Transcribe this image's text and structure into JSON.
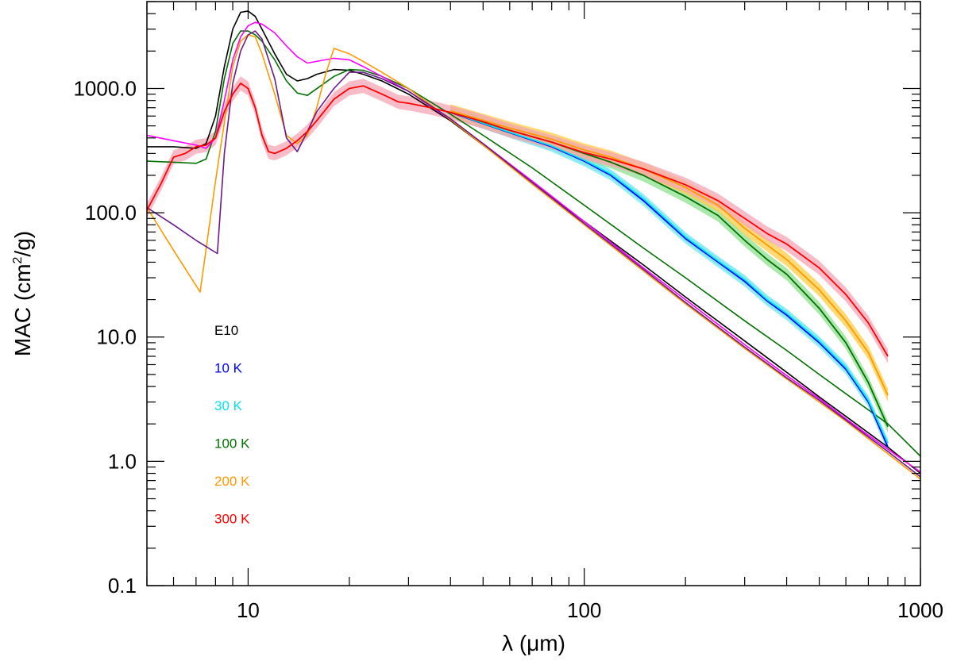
{
  "chart_data": {
    "type": "line",
    "title": "",
    "xlabel": "λ (μm)",
    "ylabel": {
      "pre": "MAC (cm",
      "sup": "2",
      "post": "/g)"
    },
    "xscale": "log",
    "yscale": "log",
    "xlim": [
      5,
      1000
    ],
    "ylim": [
      0.1,
      5000
    ],
    "xtick_values": [
      10,
      100,
      1000
    ],
    "xtick_labels": [
      "10",
      "100",
      "1000"
    ],
    "ytick_values": [
      0.1,
      1,
      10,
      100,
      1000
    ],
    "ytick_labels": [
      "0.1",
      "1.0",
      "10.0",
      "100.0",
      "1000.0"
    ],
    "legend_position": "middle-left",
    "legend": [
      {
        "label": "E10",
        "color": "#000000"
      },
      {
        "label": "10 K",
        "color": "#0000ff"
      },
      {
        "label": "30 K",
        "color": "#00e5ee"
      },
      {
        "label": "100 K",
        "color": "#007000"
      },
      {
        "label": "200 K",
        "color": "#ff9900"
      },
      {
        "label": "300 K",
        "color": "#ff0000"
      }
    ],
    "measured_series": [
      {
        "name": "10 K",
        "color": "#0000ff",
        "band_color": "#7ae8ef",
        "band_factor": 1.1,
        "x": [
          40,
          60,
          80,
          100,
          120,
          150,
          200,
          250,
          300,
          350,
          400,
          500,
          600,
          700,
          800
        ],
        "y": [
          640,
          440,
          340,
          260,
          200,
          125,
          62,
          40,
          28,
          19.5,
          15,
          9,
          5.5,
          3,
          1.3
        ]
      },
      {
        "name": "30 K",
        "color": "#00e5ee",
        "band_color": "#7ae8ef",
        "band_factor": 1.09,
        "x": [
          40,
          60,
          80,
          100,
          120,
          150,
          200,
          250,
          300,
          350,
          400,
          500,
          600,
          700,
          800
        ],
        "y": [
          645,
          445,
          345,
          265,
          205,
          130,
          64,
          41,
          29,
          20,
          15.5,
          9.3,
          5.7,
          3.1,
          1.4
        ]
      },
      {
        "name": "100 K",
        "color": "#007000",
        "band_color": "#8fe08f",
        "band_factor": 1.12,
        "x": [
          40,
          60,
          80,
          100,
          120,
          150,
          200,
          250,
          300,
          350,
          400,
          500,
          600,
          700,
          800
        ],
        "y": [
          650,
          460,
          370,
          300,
          255,
          200,
          135,
          95,
          60,
          42,
          32,
          17,
          9,
          4.3,
          1.9
        ]
      },
      {
        "name": "200 K",
        "color": "#ff9900",
        "band_color": "#ffcc44",
        "band_factor": 1.13,
        "x": [
          40,
          60,
          80,
          100,
          120,
          150,
          200,
          250,
          300,
          350,
          400,
          500,
          600,
          700,
          800
        ],
        "y": [
          660,
          480,
          390,
          320,
          280,
          225,
          160,
          115,
          75,
          55,
          42,
          24,
          13.5,
          7.5,
          3.4
        ]
      },
      {
        "name": "300 K",
        "color": "#ff0000",
        "band_color": "#f5a5b5",
        "band_factor": 1.14,
        "x": [
          5,
          5.5,
          6,
          6.5,
          7,
          7.5,
          8,
          8.5,
          9,
          9.5,
          10,
          10.5,
          11,
          11.5,
          12,
          13,
          14,
          15,
          16,
          18,
          20,
          22,
          25,
          28,
          30,
          35,
          40,
          50,
          60,
          80,
          100,
          120,
          150,
          200,
          250,
          300,
          350,
          400,
          500,
          600,
          700,
          800
        ],
        "y": [
          105,
          170,
          280,
          300,
          340,
          350,
          400,
          650,
          900,
          1100,
          1000,
          700,
          420,
          310,
          300,
          330,
          380,
          450,
          550,
          820,
          1000,
          1050,
          900,
          780,
          760,
          700,
          640,
          540,
          460,
          370,
          305,
          270,
          225,
          168,
          125,
          90,
          68,
          56,
          36,
          22,
          13,
          7
        ]
      }
    ],
    "model_series": [
      {
        "name": "E10 black",
        "color": "#000000",
        "x": [
          5,
          6,
          7,
          7.5,
          8,
          8.5,
          9,
          9.5,
          10,
          10.5,
          11,
          12,
          13,
          14,
          15,
          16,
          18,
          20,
          22,
          25,
          30,
          40,
          50,
          70,
          100,
          150,
          200,
          300,
          400,
          500,
          600,
          800,
          1000
        ],
        "y": [
          340,
          340,
          330,
          360,
          600,
          1500,
          3000,
          4100,
          4200,
          3800,
          3000,
          1900,
          1300,
          1150,
          1200,
          1300,
          1420,
          1400,
          1300,
          1150,
          900,
          550,
          350,
          175,
          85,
          38,
          21,
          9.3,
          5.2,
          3.3,
          2.3,
          1.3,
          0.8
        ]
      },
      {
        "name": "green model",
        "color": "#007000",
        "x": [
          5,
          6,
          7,
          7.5,
          8,
          8.5,
          9,
          9.5,
          10,
          10.5,
          11,
          12,
          13,
          14,
          15,
          18,
          20,
          22,
          25,
          30,
          40,
          50,
          70,
          100,
          150,
          200,
          300,
          400,
          500,
          600,
          800,
          1000
        ],
        "y": [
          260,
          255,
          250,
          270,
          450,
          1200,
          2300,
          2900,
          2900,
          2700,
          2400,
          1700,
          1150,
          920,
          880,
          1250,
          1420,
          1400,
          1250,
          1000,
          620,
          420,
          230,
          115,
          52,
          30,
          13.5,
          7.8,
          5,
          3.5,
          2,
          1.1
        ]
      },
      {
        "name": "magenta model",
        "color": "#ff00ff",
        "x": [
          5,
          6,
          7,
          7.5,
          8,
          8.5,
          9,
          9.5,
          10,
          10.5,
          11,
          12,
          13,
          14,
          15,
          18,
          20,
          22,
          25,
          30,
          40,
          50,
          70,
          100,
          150,
          200,
          300,
          400,
          500,
          600,
          800,
          1000
        ],
        "y": [
          420,
          380,
          350,
          330,
          400,
          800,
          1700,
          2600,
          3200,
          3400,
          3300,
          2800,
          2200,
          1800,
          1600,
          1750,
          1700,
          1500,
          1250,
          950,
          560,
          360,
          180,
          85,
          36,
          20,
          8.7,
          4.9,
          3.2,
          2.2,
          1.25,
          0.82
        ]
      },
      {
        "name": "orange model",
        "color": "#ff9900",
        "x": [
          5,
          6,
          7.2,
          8,
          9,
          9.5,
          10,
          10.5,
          11,
          12,
          13,
          14,
          15,
          16,
          17,
          18,
          20,
          22,
          25,
          30,
          40,
          50,
          70,
          100,
          150,
          200,
          300,
          400,
          500,
          600,
          800,
          1000
        ],
        "y": [
          110,
          50,
          23,
          180,
          1500,
          2400,
          2700,
          2600,
          1900,
          900,
          420,
          360,
          420,
          700,
          1300,
          2100,
          1900,
          1650,
          1350,
          1000,
          560,
          350,
          170,
          80,
          34,
          18.5,
          8.1,
          4.6,
          3,
          2.1,
          1.15,
          0.72
        ]
      },
      {
        "name": "purple model",
        "color": "#6a1a8a",
        "x": [
          5,
          6,
          7,
          8.1,
          8.5,
          9,
          9.5,
          10,
          10.5,
          11,
          12,
          13,
          14,
          15,
          16,
          18,
          20,
          22,
          25,
          30,
          40,
          50,
          70,
          100,
          150,
          200,
          300,
          400,
          500,
          600,
          800,
          1000
        ],
        "y": [
          110,
          80,
          60,
          47,
          300,
          1100,
          2000,
          2700,
          2900,
          2500,
          1200,
          400,
          310,
          450,
          650,
          1000,
          1350,
          1350,
          1200,
          950,
          570,
          360,
          175,
          82,
          35,
          19,
          8.3,
          4.7,
          3.1,
          2.15,
          1.2,
          0.75
        ]
      }
    ]
  }
}
